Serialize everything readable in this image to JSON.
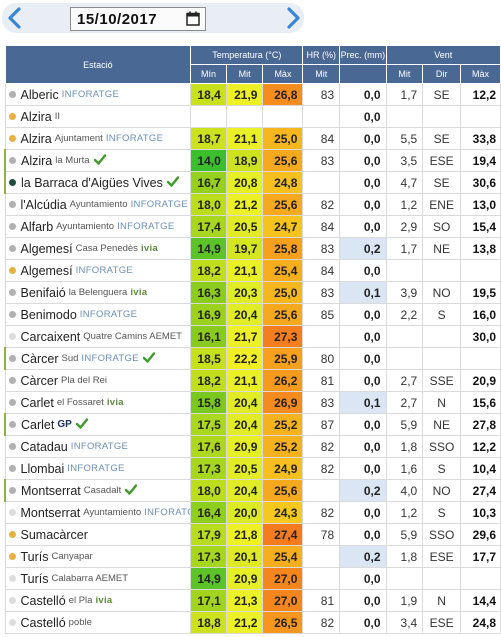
{
  "header": {
    "date_value": "15/10/2017",
    "prev_icon": "chevron-left-icon",
    "next_icon": "chevron-right-icon",
    "calendar_icon": "calendar-icon",
    "accent_color": "#3a86d6"
  },
  "table": {
    "group_headers": {
      "station": "Estació",
      "temperature": "Temperatura (°C)",
      "humidity": "HR (%)",
      "precipitation": "Prec. (mm)",
      "wind": "Vent"
    },
    "sub_headers": {
      "t_min": "Mín",
      "t_mit": "Mit",
      "t_max": "Màx",
      "hr_mit": "Mit",
      "wind_mit": "Mit",
      "wind_dir": "Dir",
      "wind_max": "Màx"
    },
    "rows": [
      {
        "name": "Alberic",
        "sub": "",
        "brand": "INFORATGE",
        "check": false,
        "dot": "#b0b0b0",
        "tmin": "18,4",
        "tmit": "21,9",
        "tmax": "26,8",
        "hr": "83",
        "prec": "0,0",
        "wmit": "1,7",
        "wdir": "SE",
        "wmax": "12,2",
        "cmin": "#c8e01e",
        "cmit": "#eef026",
        "cmax": "#f58c1e",
        "ph": false
      },
      {
        "name": "Alzira",
        "sub": "II",
        "brand": "",
        "check": false,
        "dot": "#e8b040",
        "tmin": "",
        "tmit": "",
        "tmax": "",
        "hr": "",
        "prec": "0,0",
        "wmit": "",
        "wdir": "",
        "wmax": "",
        "cmin": "#ffffff",
        "cmit": "#ffffff",
        "cmax": "#ffffff",
        "ph": false
      },
      {
        "name": "Alzira",
        "sub": "Ajuntament",
        "brand": "INFORATGE",
        "check": false,
        "dot": "#e8b040",
        "tmin": "18,7",
        "tmit": "21,1",
        "tmax": "25,0",
        "hr": "84",
        "prec": "0,0",
        "wmit": "5,5",
        "wdir": "SE",
        "wmax": "33,8",
        "cmin": "#cce21e",
        "cmit": "#eaf026",
        "cmax": "#f6b71e",
        "ph": false
      },
      {
        "name": "Alzira",
        "sub": "la Murta",
        "brand": "",
        "check": true,
        "dot": "#b0b0b0",
        "tmin": "14,0",
        "tmit": "18,9",
        "tmax": "25,6",
        "hr": "83",
        "prec": "0,0",
        "wmit": "3,5",
        "wdir": "ESE",
        "wmax": "19,4",
        "cmin": "#3cbf2c",
        "cmit": "#cce21e",
        "cmax": "#f6a81e",
        "ph": false
      },
      {
        "name": "la Barraca d'Aigües Vives",
        "sub": "",
        "brand": "",
        "check": true,
        "dot": "#1f4a3e",
        "tmin": "16,7",
        "tmit": "20,8",
        "tmax": "24,8",
        "hr": "",
        "prec": "0,0",
        "wmit": "4,7",
        "wdir": "SE",
        "wmax": "30,6",
        "cmin": "#96d01e",
        "cmit": "#e6ee26",
        "cmax": "#f6c01e",
        "ph": false
      },
      {
        "name": "l'Alcúdia",
        "sub": "Ayuntamiento",
        "brand": "INFORATGE",
        "check": false,
        "dot": "#b0b0b0",
        "tmin": "18,0",
        "tmit": "21,2",
        "tmax": "25,6",
        "hr": "82",
        "prec": "0,0",
        "wmit": "1,2",
        "wdir": "ENE",
        "wmax": "13,0",
        "cmin": "#bcdc1e",
        "cmit": "#ecf026",
        "cmax": "#f6a81e",
        "ph": false
      },
      {
        "name": "Alfarb",
        "sub": "Ayuntamiento",
        "brand": "INFORATGE",
        "check": false,
        "dot": "#b0b0b0",
        "tmin": "17,4",
        "tmit": "20,5",
        "tmax": "24,7",
        "hr": "84",
        "prec": "0,0",
        "wmit": "2,9",
        "wdir": "SO",
        "wmax": "15,4",
        "cmin": "#a8d61e",
        "cmit": "#e2ec26",
        "cmax": "#f6c21e",
        "ph": false
      },
      {
        "name": "Algemesí",
        "sub": "Casa Penedès",
        "brand": "ivia",
        "check": false,
        "dot": "#b0b0b0",
        "tmin": "14,9",
        "tmit": "19,7",
        "tmax": "25,8",
        "hr": "83",
        "prec": "0,2",
        "wmit": "1,7",
        "wdir": "NE",
        "wmax": "13,8",
        "cmin": "#5cc428",
        "cmit": "#d6e61e",
        "cmax": "#f6a01e",
        "ph": true
      },
      {
        "name": "Algemesí",
        "sub": "",
        "brand": "INFORATGE",
        "check": false,
        "dot": "#e8b040",
        "tmin": "18,2",
        "tmit": "21,1",
        "tmax": "25,4",
        "hr": "84",
        "prec": "0,0",
        "wmit": "",
        "wdir": "",
        "wmax": "",
        "cmin": "#c0de1e",
        "cmit": "#eaf026",
        "cmax": "#f6ae1e",
        "ph": false
      },
      {
        "name": "Benifaió",
        "sub": "la Belenguera",
        "brand": "ivia",
        "check": false,
        "dot": "#b0b0b0",
        "tmin": "16,3",
        "tmit": "20,3",
        "tmax": "25,0",
        "hr": "83",
        "prec": "0,1",
        "wmit": "3,9",
        "wdir": "NO",
        "wmax": "19,5",
        "cmin": "#8ccc1e",
        "cmit": "#e0ec26",
        "cmax": "#f6b71e",
        "ph": true
      },
      {
        "name": "Benimodo",
        "sub": "",
        "brand": "INFORATGE",
        "check": false,
        "dot": "#b0b0b0",
        "tmin": "16,9",
        "tmit": "20,4",
        "tmax": "25,6",
        "hr": "85",
        "prec": "0,0",
        "wmit": "2,2",
        "wdir": "S",
        "wmax": "16,0",
        "cmin": "#9cd21e",
        "cmit": "#e2ec26",
        "cmax": "#f6a81e",
        "ph": false
      },
      {
        "name": "Carcaixent",
        "sub": "Quatre Camins AEMET",
        "brand": "",
        "check": false,
        "dot": "#dcdcdc",
        "tmin": "16,1",
        "tmit": "21,7",
        "tmax": "27,3",
        "hr": "",
        "prec": "0,0",
        "wmit": "",
        "wdir": "",
        "wmax": "30,0",
        "cmin": "#88ca1e",
        "cmit": "#eef026",
        "cmax": "#f47e1e",
        "ph": false
      },
      {
        "name": "Càrcer",
        "sub": "Sud",
        "brand": "INFORATGE",
        "check": true,
        "dot": "#b0b0b0",
        "tmin": "18,5",
        "tmit": "22,2",
        "tmax": "25,9",
        "hr": "80",
        "prec": "0,0",
        "wmit": "",
        "wdir": "",
        "wmax": "",
        "cmin": "#c6e01e",
        "cmit": "#f2ee26",
        "cmax": "#f6a01e",
        "ph": false
      },
      {
        "name": "Càrcer",
        "sub": "Pla del Rei",
        "brand": "",
        "check": false,
        "dot": "#b0b0b0",
        "tmin": "18,2",
        "tmit": "21,1",
        "tmax": "26,2",
        "hr": "81",
        "prec": "0,0",
        "wmit": "2,7",
        "wdir": "SSE",
        "wmax": "20,9",
        "cmin": "#c0de1e",
        "cmit": "#eaf026",
        "cmax": "#f69a1e",
        "ph": false
      },
      {
        "name": "Carlet",
        "sub": "el Fossaret",
        "brand": "ivia",
        "check": false,
        "dot": "#b0b0b0",
        "tmin": "15,8",
        "tmit": "20,4",
        "tmax": "26,9",
        "hr": "83",
        "prec": "0,1",
        "wmit": "2,7",
        "wdir": "N",
        "wmax": "15,6",
        "cmin": "#7ac81e",
        "cmit": "#e2ec26",
        "cmax": "#f58a1e",
        "ph": true
      },
      {
        "name": "Carlet",
        "sub": "",
        "brand": "GP",
        "check": true,
        "dot": "#b0b0b0",
        "tmin": "17,5",
        "tmit": "20,4",
        "tmax": "25,2",
        "hr": "87",
        "prec": "0,0",
        "wmit": "5,9",
        "wdir": "NE",
        "wmax": "27,8",
        "cmin": "#aad81e",
        "cmit": "#e2ec26",
        "cmax": "#f6b21e",
        "ph": false
      },
      {
        "name": "Catadau",
        "sub": "",
        "brand": "INFORATGE",
        "check": false,
        "dot": "#b0b0b0",
        "tmin": "17,6",
        "tmit": "20,9",
        "tmax": "25,2",
        "hr": "82",
        "prec": "0,0",
        "wmit": "1,8",
        "wdir": "SSO",
        "wmax": "12,2",
        "cmin": "#aed81e",
        "cmit": "#e6ee26",
        "cmax": "#f6b21e",
        "ph": false
      },
      {
        "name": "Llombai",
        "sub": "",
        "brand": "INFORATGE",
        "check": false,
        "dot": "#b0b0b0",
        "tmin": "17,3",
        "tmit": "20,5",
        "tmax": "24,9",
        "hr": "82",
        "prec": "0,0",
        "wmit": "1,6",
        "wdir": "S",
        "wmax": "10,4",
        "cmin": "#a6d61e",
        "cmit": "#e2ec26",
        "cmax": "#f6be1e",
        "ph": false
      },
      {
        "name": "Montserrat",
        "sub": "Casadalt",
        "brand": "",
        "check": true,
        "dot": "#b0b0b0",
        "tmin": "18,0",
        "tmit": "20,4",
        "tmax": "25,6",
        "hr": "",
        "prec": "0,2",
        "wmit": "4,0",
        "wdir": "NO",
        "wmax": "27,4",
        "cmin": "#bcdc1e",
        "cmit": "#e2ec26",
        "cmax": "#f6a81e",
        "ph": true
      },
      {
        "name": "Montserrat",
        "sub": "Ayuntamiento",
        "brand": "INFORATGE",
        "check": false,
        "dot": "#dcdcdc",
        "tmin": "16,4",
        "tmit": "20,0",
        "tmax": "24,3",
        "hr": "82",
        "prec": "0,0",
        "wmit": "1,2",
        "wdir": "S",
        "wmax": "10,3",
        "cmin": "#8ece1e",
        "cmit": "#dcea26",
        "cmax": "#f6c81e",
        "ph": false
      },
      {
        "name": "Sumacàrcer",
        "sub": "",
        "brand": "",
        "check": false,
        "dot": "#e8b040",
        "tmin": "17,9",
        "tmit": "21,8",
        "tmax": "27,4",
        "hr": "78",
        "prec": "0,0",
        "wmit": "5,9",
        "wdir": "SSO",
        "wmax": "29,6",
        "cmin": "#b8dc1e",
        "cmit": "#eef026",
        "cmax": "#f47c1e",
        "ph": false
      },
      {
        "name": "Turís",
        "sub": "Canyapar",
        "brand": "",
        "check": false,
        "dot": "#e8b040",
        "tmin": "17,3",
        "tmit": "20,1",
        "tmax": "25,4",
        "hr": "",
        "prec": "0,2",
        "wmit": "1,8",
        "wdir": "ESE",
        "wmax": "17,7",
        "cmin": "#a6d61e",
        "cmit": "#deea26",
        "cmax": "#f6ae1e",
        "ph": true
      },
      {
        "name": "Turís",
        "sub": "Calabarra AEMET",
        "brand": "",
        "check": false,
        "dot": "#dcdcdc",
        "tmin": "14,9",
        "tmit": "20,9",
        "tmax": "27,0",
        "hr": "",
        "prec": "0,0",
        "wmit": "",
        "wdir": "",
        "wmax": "",
        "cmin": "#5cc428",
        "cmit": "#e6ee26",
        "cmax": "#f5861e",
        "ph": false
      },
      {
        "name": "Castelló",
        "sub": "el Pla",
        "brand": "ivia",
        "check": false,
        "dot": "#dcdcdc",
        "tmin": "17,1",
        "tmit": "21,3",
        "tmax": "27,0",
        "hr": "81",
        "prec": "0,0",
        "wmit": "1,9",
        "wdir": "N",
        "wmax": "14,4",
        "cmin": "#a2d41e",
        "cmit": "#ecf026",
        "cmax": "#f5861e",
        "ph": false
      },
      {
        "name": "Castelló",
        "sub": "poble",
        "brand": "",
        "check": false,
        "dot": "#dcdcdc",
        "tmin": "18,8",
        "tmit": "21,2",
        "tmax": "26,5",
        "hr": "82",
        "prec": "0,0",
        "wmit": "3,4",
        "wdir": "ESE",
        "wmax": "24,8",
        "cmin": "#cce21e",
        "cmit": "#ecf026",
        "cmax": "#f6961e",
        "ph": false
      }
    ]
  }
}
